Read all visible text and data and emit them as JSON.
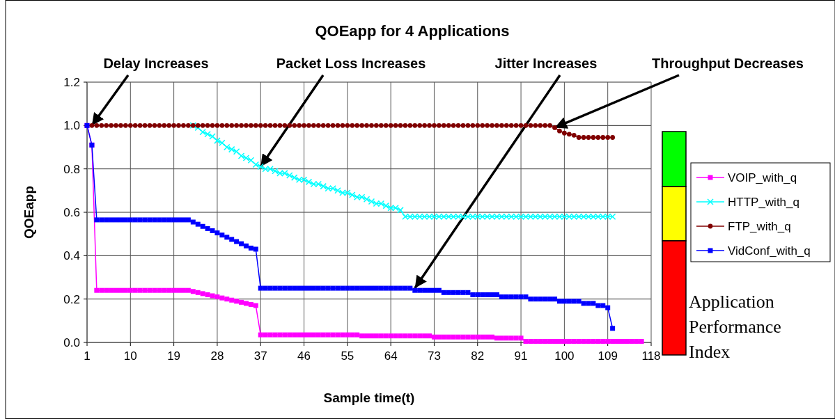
{
  "chart_data": {
    "type": "line",
    "title": "QOEapp for 4 Applications",
    "xlabel": "Sample time(t)",
    "ylabel": "QOEapp",
    "x": [
      1,
      2,
      3,
      4,
      5,
      6,
      7,
      8,
      9,
      10,
      11,
      12,
      13,
      14,
      15,
      16,
      17,
      18,
      19,
      20,
      21,
      22,
      23,
      24,
      25,
      26,
      27,
      28,
      29,
      30,
      31,
      32,
      33,
      34,
      35,
      36,
      37,
      38,
      39,
      40,
      41,
      42,
      43,
      44,
      45,
      46,
      47,
      48,
      49,
      50,
      51,
      52,
      53,
      54,
      55,
      56,
      57,
      58,
      59,
      60,
      61,
      62,
      63,
      64,
      65,
      66,
      67,
      68,
      69,
      70,
      71,
      72,
      73,
      74,
      75,
      76,
      77,
      78,
      79,
      80,
      81,
      82,
      83,
      84,
      85,
      86,
      87,
      88,
      89,
      90,
      91,
      92,
      93,
      94,
      95,
      96,
      97,
      98,
      99,
      100,
      101,
      102,
      103,
      104,
      105,
      106,
      107,
      108,
      109,
      110,
      111,
      112,
      113,
      114,
      115,
      116
    ],
    "xlim": [
      1,
      118
    ],
    "xticks": [
      1,
      10,
      19,
      28,
      37,
      46,
      55,
      64,
      73,
      82,
      91,
      100,
      109,
      118
    ],
    "ylim": [
      0,
      1.2
    ],
    "yticks": [
      {
        "value": 0,
        "label": "0.0"
      },
      {
        "value": 0.2,
        "label": "0.2"
      },
      {
        "value": 0.4,
        "label": "0.4"
      },
      {
        "value": 0.6,
        "label": "0.6"
      },
      {
        "value": 0.8,
        "label": "0.8"
      },
      {
        "value": 1,
        "label": "1.0"
      },
      {
        "value": 1.2,
        "label": "1.2"
      }
    ],
    "grid": true,
    "legend": "right",
    "line_style": "solid",
    "series": [
      {
        "name": "VOIP_with_q",
        "color": "#ff00ff",
        "marker": "square",
        "values": [
          1.0,
          0.91,
          0.24,
          0.24,
          0.24,
          0.24,
          0.24,
          0.24,
          0.24,
          0.24,
          0.24,
          0.24,
          0.24,
          0.24,
          0.24,
          0.24,
          0.24,
          0.24,
          0.24,
          0.24,
          0.24,
          0.24,
          0.235,
          0.23,
          0.225,
          0.22,
          0.215,
          0.21,
          0.205,
          0.2,
          0.195,
          0.19,
          0.185,
          0.18,
          0.175,
          0.17,
          0.035,
          0.035,
          0.035,
          0.035,
          0.035,
          0.035,
          0.035,
          0.035,
          0.035,
          0.035,
          0.035,
          0.035,
          0.035,
          0.035,
          0.035,
          0.035,
          0.035,
          0.035,
          0.035,
          0.035,
          0.035,
          0.03,
          0.03,
          0.03,
          0.03,
          0.03,
          0.03,
          0.03,
          0.03,
          0.03,
          0.03,
          0.03,
          0.03,
          0.03,
          0.03,
          0.03,
          0.025,
          0.025,
          0.025,
          0.025,
          0.025,
          0.025,
          0.025,
          0.025,
          0.025,
          0.025,
          0.025,
          0.025,
          0.025,
          0.02,
          0.02,
          0.02,
          0.02,
          0.02,
          0.02,
          0.005,
          0.005,
          0.005,
          0.005,
          0.005,
          0.005,
          0.005,
          0.005,
          0.005,
          0.005,
          0.005,
          0.005,
          0.005,
          0.005,
          0.005,
          0.005,
          0.005,
          0.005,
          0.005,
          0.005,
          0.005,
          0.005,
          0.005,
          0.005,
          0.005
        ]
      },
      {
        "name": "HTTP_with_q",
        "color": "#00ffff",
        "marker": "cross",
        "values": [
          null,
          null,
          null,
          null,
          null,
          null,
          null,
          null,
          null,
          null,
          null,
          null,
          null,
          null,
          null,
          null,
          null,
          null,
          null,
          null,
          null,
          null,
          1.0,
          0.99,
          0.97,
          0.96,
          0.95,
          0.93,
          0.92,
          0.9,
          0.89,
          0.88,
          0.86,
          0.85,
          0.84,
          0.82,
          0.81,
          0.8,
          0.8,
          0.79,
          0.78,
          0.78,
          0.77,
          0.76,
          0.75,
          0.75,
          0.74,
          0.73,
          0.73,
          0.72,
          0.71,
          0.71,
          0.7,
          0.69,
          0.69,
          0.68,
          0.67,
          0.67,
          0.66,
          0.65,
          0.64,
          0.64,
          0.63,
          0.62,
          0.62,
          0.61,
          0.58,
          0.58,
          0.58,
          0.58,
          0.58,
          0.58,
          0.58,
          0.58,
          0.58,
          0.58,
          0.58,
          0.58,
          0.58,
          0.58,
          0.58,
          0.58,
          0.58,
          0.58,
          0.58,
          0.58,
          0.58,
          0.58,
          0.58,
          0.58,
          0.58,
          0.58,
          0.58,
          0.58,
          0.58,
          0.58,
          0.58,
          0.58,
          0.58,
          0.58,
          0.58,
          0.58,
          0.58,
          0.58,
          0.58,
          0.58,
          0.58,
          0.58,
          0.58,
          0.58,
          null,
          null,
          null,
          null,
          null,
          null
        ]
      },
      {
        "name": "FTP_with_q",
        "color": "#800000",
        "marker": "circle",
        "values": [
          1.0,
          1.0,
          1.0,
          1.0,
          1.0,
          1.0,
          1.0,
          1.0,
          1.0,
          1.0,
          1.0,
          1.0,
          1.0,
          1.0,
          1.0,
          1.0,
          1.0,
          1.0,
          1.0,
          1.0,
          1.0,
          1.0,
          1.0,
          1.0,
          1.0,
          1.0,
          1.0,
          1.0,
          1.0,
          1.0,
          1.0,
          1.0,
          1.0,
          1.0,
          1.0,
          1.0,
          1.0,
          1.0,
          1.0,
          1.0,
          1.0,
          1.0,
          1.0,
          1.0,
          1.0,
          1.0,
          1.0,
          1.0,
          1.0,
          1.0,
          1.0,
          1.0,
          1.0,
          1.0,
          1.0,
          1.0,
          1.0,
          1.0,
          1.0,
          1.0,
          1.0,
          1.0,
          1.0,
          1.0,
          1.0,
          1.0,
          1.0,
          1.0,
          1.0,
          1.0,
          1.0,
          1.0,
          1.0,
          1.0,
          1.0,
          1.0,
          1.0,
          1.0,
          1.0,
          1.0,
          1.0,
          1.0,
          1.0,
          1.0,
          1.0,
          1.0,
          1.0,
          1.0,
          1.0,
          1.0,
          1.0,
          1.0,
          1.0,
          1.0,
          1.0,
          1.0,
          1.0,
          0.99,
          0.975,
          0.965,
          0.96,
          0.955,
          0.945,
          0.945,
          0.945,
          0.945,
          0.945,
          0.945,
          0.945,
          0.945,
          null,
          null,
          null,
          null,
          null,
          null
        ]
      },
      {
        "name": "VidConf_with_q",
        "color": "#0000ff",
        "marker": "square",
        "values": [
          1.0,
          0.91,
          0.565,
          0.565,
          0.565,
          0.565,
          0.565,
          0.565,
          0.565,
          0.565,
          0.565,
          0.565,
          0.565,
          0.565,
          0.565,
          0.565,
          0.565,
          0.565,
          0.565,
          0.565,
          0.565,
          0.565,
          0.555,
          0.545,
          0.535,
          0.525,
          0.515,
          0.505,
          0.495,
          0.485,
          0.475,
          0.465,
          0.455,
          0.445,
          0.435,
          0.43,
          0.25,
          0.25,
          0.25,
          0.25,
          0.25,
          0.25,
          0.25,
          0.25,
          0.25,
          0.25,
          0.25,
          0.25,
          0.25,
          0.25,
          0.25,
          0.25,
          0.25,
          0.25,
          0.25,
          0.25,
          0.25,
          0.25,
          0.25,
          0.25,
          0.25,
          0.25,
          0.25,
          0.25,
          0.25,
          0.25,
          0.25,
          0.25,
          0.24,
          0.24,
          0.24,
          0.24,
          0.24,
          0.24,
          0.23,
          0.23,
          0.23,
          0.23,
          0.23,
          0.23,
          0.22,
          0.22,
          0.22,
          0.22,
          0.22,
          0.22,
          0.21,
          0.21,
          0.21,
          0.21,
          0.21,
          0.21,
          0.2,
          0.2,
          0.2,
          0.2,
          0.2,
          0.2,
          0.19,
          0.19,
          0.19,
          0.19,
          0.19,
          0.18,
          0.18,
          0.18,
          0.17,
          0.17,
          0.16,
          0.065,
          null,
          null,
          null,
          null,
          null,
          null
        ]
      }
    ],
    "annotations": [
      {
        "text": "Delay Increases",
        "x": 2,
        "y": 1.0
      },
      {
        "text": "Packet Loss Increases",
        "x": 37,
        "y": 0.81
      },
      {
        "text": "Jitter Increases",
        "x": 69,
        "y": 0.25
      },
      {
        "text": "Throughput Decreases",
        "x": 98,
        "y": 0.99
      },
      "Application Performance Index"
    ]
  }
}
